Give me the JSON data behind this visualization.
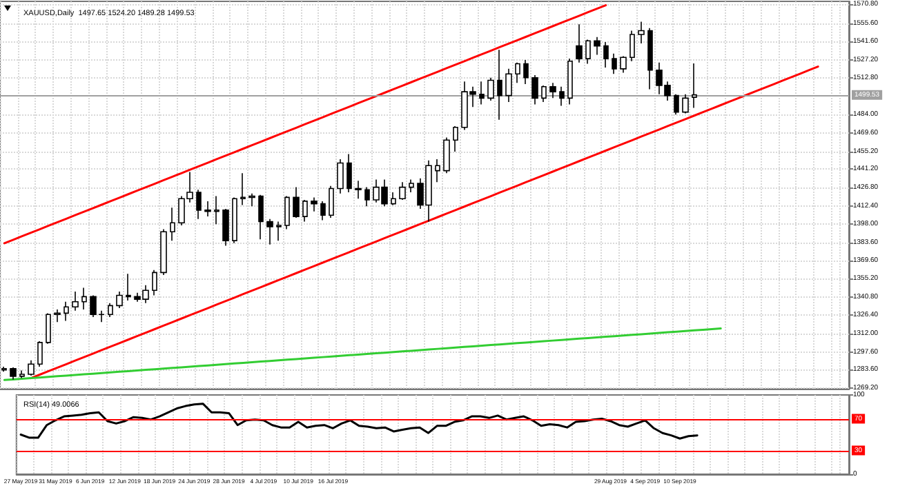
{
  "chart_data": [
    {
      "type": "candlestick",
      "title": "XAUUSD,Daily  1497.65 1524.20 1489.28 1499.53",
      "tick_labels": "y",
      "grid": true,
      "categories": [
        null,
        null,
        null,
        null,
        null,
        null,
        null,
        null,
        null,
        null,
        null,
        null,
        null,
        null,
        null,
        null,
        null,
        null,
        null,
        null,
        null,
        null,
        null,
        null,
        null,
        null,
        null,
        null,
        null,
        null,
        null,
        null,
        null,
        null,
        null,
        null,
        null,
        null,
        null,
        null,
        null,
        null,
        null,
        null,
        null,
        null,
        null,
        null,
        null,
        null,
        null,
        null,
        null,
        null,
        null,
        null,
        null,
        null,
        null,
        null,
        null,
        null,
        null,
        null,
        null,
        null,
        null,
        null,
        null,
        null,
        null,
        null,
        null,
        null,
        null,
        null,
        null,
        null,
        null,
        null,
        null,
        null,
        null,
        null,
        null,
        null,
        null,
        null,
        null,
        null,
        null,
        null,
        null,
        null,
        null,
        null
      ],
      "ylim": [
        1268.5,
        1573
      ],
      "yticks": [
        {
          "value": 1269.2,
          "label": "1269.20"
        },
        {
          "value": 1283.6,
          "label": "1283.60"
        },
        {
          "value": 1297.6,
          "label": "1297.60"
        },
        {
          "value": 1312.0,
          "label": "1312.00"
        },
        {
          "value": 1326.4,
          "label": "1326.40"
        },
        {
          "value": 1340.8,
          "label": "1340.80"
        },
        {
          "value": 1355.2,
          "label": "1355.20"
        },
        {
          "value": 1369.6,
          "label": "1369.60"
        },
        {
          "value": 1383.6,
          "label": "1383.60"
        },
        {
          "value": 1398.0,
          "label": "1398.00"
        },
        {
          "value": 1412.4,
          "label": "1412.40"
        },
        {
          "value": 1426.8,
          "label": "1426.80"
        },
        {
          "value": 1441.2,
          "label": "1441.20"
        },
        {
          "value": 1455.2,
          "label": "1455.20"
        },
        {
          "value": 1469.6,
          "label": "1469.60"
        },
        {
          "value": 1484.0,
          "label": "1484.00"
        },
        {
          "value": 1512.8,
          "label": "1512.80"
        },
        {
          "value": 1527.2,
          "label": "1527.20"
        },
        {
          "value": 1541.6,
          "label": "1541.60"
        },
        {
          "value": 1555.6,
          "label": "1555.60"
        },
        {
          "value": 1570.8,
          "label": "1570.80"
        }
      ],
      "ref_lines": [
        {
          "axis": "y",
          "value": 1499.53,
          "label": "1499.53",
          "color": "#a0a0a0"
        }
      ],
      "series": [
        {
          "type": "line",
          "color": "#ff0000",
          "values": [
            1383,
            1385.75,
            1388.5,
            1391.25,
            1394,
            1396.75,
            1399.5,
            1402.25,
            1405,
            1407.75,
            1410.5,
            1413.25,
            1416,
            1418.75,
            1421.5,
            1424.25,
            1427,
            1429.75,
            1432.5,
            1435.25,
            1438,
            1440.75,
            1443.5,
            1446.25,
            1449,
            1451.75,
            1454.5,
            1457.25,
            1460,
            1462.75,
            1465.5,
            1468.25,
            1471,
            1473.75,
            1476.5,
            1479.25,
            1482,
            1484.75,
            1487.5,
            1490.25,
            1493,
            1495.75,
            1498.5,
            1501.25,
            1504,
            1506.75,
            1509.5,
            1512.25,
            1515,
            1517.75,
            1520.5,
            1523.25,
            1526,
            1528.75,
            1531.5,
            1534.25,
            1537,
            1539.75,
            1542.5,
            1545.25,
            1548,
            1550.75,
            1553.5,
            1556.25,
            1559,
            1561.75,
            1564.5,
            1567.25,
            1570,
            null,
            null,
            null,
            null,
            null,
            null,
            null,
            null,
            null,
            null,
            null,
            null,
            null,
            null,
            null,
            null,
            null,
            null,
            null,
            null,
            null,
            null,
            null,
            null,
            null,
            null,
            null
          ]
        },
        {
          "type": "line",
          "color": "#ff0000",
          "values": [
            null,
            null,
            null,
            1277,
            1279.75,
            1282.5,
            1285.25,
            1288,
            1290.75,
            1293.5,
            1296.25,
            1299,
            1301.75,
            1304.5,
            1307.25,
            1310,
            1312.75,
            1315.5,
            1318.25,
            1321,
            1323.75,
            1326.5,
            1329.25,
            1332,
            1334.75,
            1337.5,
            1340.25,
            1343,
            1345.75,
            1348.5,
            1351.25,
            1354,
            1356.75,
            1359.5,
            1362.25,
            1365,
            1367.75,
            1370.5,
            1373.25,
            1376,
            1378.75,
            1381.5,
            1384.25,
            1387,
            1389.75,
            1392.5,
            1395.25,
            1398,
            1400.75,
            1403.5,
            1406.25,
            1409,
            1411.75,
            1414.5,
            1417.25,
            1420,
            1422.75,
            1425.5,
            1428.25,
            1431,
            1433.75,
            1436.5,
            1439.25,
            1442,
            1444.75,
            1447.5,
            1450.25,
            1453,
            1455.75,
            1458.5,
            1461.25,
            1464,
            1466.75,
            1469.5,
            1472.25,
            1475,
            1477.75,
            1480.5,
            1483.25,
            1486,
            1488.75,
            1491.5,
            1494.25,
            1497,
            1499.75,
            1502.5,
            1505.25,
            1508,
            1510.75,
            1513.5,
            1516.25,
            1519,
            1521.75,
            null,
            null,
            null
          ]
        },
        {
          "type": "line",
          "color": "#32cd32",
          "values": [
            1275.5,
            1276,
            1276.5,
            1277,
            1277.5,
            1278,
            1278.5,
            1279,
            1279.5,
            1280,
            1280.5,
            1281,
            1281.5,
            1282,
            1282.5,
            1283,
            1283.5,
            1284,
            1284.5,
            1285,
            1285.5,
            1286,
            1286.5,
            1287,
            1287.5,
            1288,
            1288.5,
            1289,
            1289.5,
            1290,
            1290.5,
            1291,
            1291.5,
            1292,
            1292.5,
            1293,
            1293.5,
            1294,
            1294.5,
            1295,
            1295.5,
            1296,
            1296.5,
            1297,
            1297.5,
            1298,
            1298.5,
            1299,
            1299.5,
            1300,
            1300.5,
            1301,
            1301.5,
            1302,
            1302.5,
            1303,
            1303.5,
            1304,
            1304.5,
            1305,
            1305.5,
            1306,
            1306.5,
            1307,
            1307.5,
            1308,
            1308.5,
            1309,
            1309.5,
            1310,
            1310.5,
            1311,
            1311.5,
            1312,
            1312.5,
            1313,
            1313.5,
            1314,
            1314.5,
            1315,
            1315.5,
            1316,
            null,
            null,
            null,
            null,
            null,
            null,
            null,
            null,
            null,
            null,
            null,
            null,
            null,
            null
          ]
        },
        {
          "color": "#000000",
          "ohlc": [
            [
              1283.5,
              1286,
              1282,
              1284.5
            ],
            [
              1284.5,
              1285.5,
              1276,
              1278.5
            ],
            [
              1278.5,
              1283,
              1277,
              1280
            ],
            [
              1280,
              1291,
              1279,
              1288
            ],
            [
              1288,
              1306,
              1286,
              1305
            ],
            [
              1305,
              1328,
              1304,
              1327
            ],
            [
              1327,
              1331,
              1321,
              1328
            ],
            [
              1328,
              1337,
              1322,
              1333
            ],
            [
              1333,
              1345,
              1330,
              1337
            ],
            [
              1337,
              1348,
              1331,
              1341
            ],
            [
              1341,
              1342,
              1325,
              1327
            ],
            [
              1327,
              1330,
              1321,
              1327
            ],
            [
              1327,
              1336,
              1325,
              1334
            ],
            [
              1334,
              1345,
              1332,
              1342
            ],
            [
              1342,
              1359,
              1338,
              1341
            ],
            [
              1341,
              1344,
              1337,
              1339
            ],
            [
              1339,
              1350,
              1336,
              1346
            ],
            [
              1346,
              1362,
              1342,
              1360
            ],
            [
              1360,
              1394,
              1358,
              1392
            ],
            [
              1392,
              1411,
              1385,
              1399
            ],
            [
              1399,
              1420,
              1397,
              1418
            ],
            [
              1418,
              1439,
              1415,
              1423
            ],
            [
              1423,
              1425,
              1402,
              1409
            ],
            [
              1409,
              1416,
              1404,
              1408
            ],
            [
              1408,
              1420,
              1398,
              1409
            ],
            [
              1409,
              1410,
              1381,
              1385
            ],
            [
              1385,
              1419,
              1383,
              1418
            ],
            [
              1418,
              1438,
              1413,
              1419
            ],
            [
              1419,
              1422,
              1412,
              1420
            ],
            [
              1420,
              1421,
              1386,
              1400
            ],
            [
              1400,
              1402,
              1382,
              1396
            ],
            [
              1396,
              1400,
              1385,
              1397
            ],
            [
              1397,
              1420,
              1394,
              1419
            ],
            [
              1419,
              1427,
              1403,
              1404
            ],
            [
              1404,
              1417,
              1400,
              1416
            ],
            [
              1416,
              1419,
              1408,
              1414
            ],
            [
              1414,
              1416,
              1401,
              1405
            ],
            [
              1405,
              1428,
              1403,
              1426
            ],
            [
              1426,
              1449,
              1422,
              1446
            ],
            [
              1446,
              1453,
              1423,
              1426
            ],
            [
              1426,
              1432,
              1418,
              1425
            ],
            [
              1425,
              1427,
              1412,
              1417
            ],
            [
              1417,
              1433,
              1415,
              1427
            ],
            [
              1427,
              1433,
              1412,
              1414
            ],
            [
              1414,
              1423,
              1413,
              1418
            ],
            [
              1418,
              1431,
              1417,
              1427
            ],
            [
              1427,
              1433,
              1423,
              1430
            ],
            [
              1430,
              1434,
              1410,
              1413
            ],
            [
              1413,
              1448,
              1400,
              1444
            ],
            [
              1440,
              1449,
              1431,
              1444
            ],
            [
              1440,
              1466,
              1438,
              1464
            ],
            [
              1464,
              1475,
              1455,
              1474
            ],
            [
              1474,
              1510,
              1472,
              1502
            ],
            [
              1502,
              1506,
              1490,
              1500
            ],
            [
              1500,
              1510,
              1492,
              1497
            ],
            [
              1497,
              1513,
              1495,
              1511
            ],
            [
              1511,
              1535,
              1480,
              1499
            ],
            [
              1499,
              1520,
              1494,
              1516
            ],
            [
              1516,
              1525,
              1509,
              1524
            ],
            [
              1524,
              1527,
              1508,
              1513
            ],
            [
              1513,
              1515,
              1492,
              1497
            ],
            [
              1497,
              1507,
              1494,
              1506
            ],
            [
              1506,
              1509,
              1497,
              1502
            ],
            [
              1502,
              1506,
              1491,
              1497
            ],
            [
              1497,
              1528,
              1492,
              1526
            ],
            [
              1538,
              1555,
              1525,
              1528
            ],
            [
              1528,
              1543,
              1524,
              1542
            ],
            [
              1542,
              1545,
              1531,
              1538
            ],
            [
              1538,
              1541,
              1521,
              1528
            ],
            [
              1528,
              1532,
              1516,
              1520
            ],
            [
              1520,
              1530,
              1517,
              1529
            ],
            [
              1529,
              1550,
              1526,
              1547
            ],
            [
              1547,
              1557,
              1540,
              1550
            ],
            [
              1550,
              1552,
              1504,
              1519
            ],
            [
              1519,
              1525,
              1500,
              1507
            ],
            [
              1507,
              1510,
              1495,
              1499
            ],
            [
              1499,
              1500,
              1484,
              1486
            ],
            [
              1486,
              1500,
              1485,
              1497
            ],
            [
              1497.65,
              1524.2,
              1489.28,
              1499.53
            ],
            null,
            null,
            null,
            null,
            null,
            null,
            null,
            null,
            null,
            null,
            null,
            null,
            null,
            null,
            null,
            null,
            null
          ]
        }
      ]
    },
    {
      "type": "line",
      "title": "RSI(14) 49.0066",
      "grid": "x",
      "categories": [
        "27 May 2019",
        null,
        null,
        null,
        "31 May 2019",
        null,
        null,
        null,
        "6 Jun 2019",
        null,
        null,
        null,
        "12 Jun 2019",
        null,
        null,
        null,
        "18 Jun 2019",
        null,
        null,
        null,
        "24 Jun 2019",
        null,
        null,
        null,
        "28 Jun 2019",
        null,
        null,
        null,
        "4 Jul 2019",
        null,
        null,
        null,
        "10 Jul 2019",
        null,
        null,
        null,
        "16 Jul 2019",
        null,
        null,
        null,
        null,
        null,
        null,
        null,
        null,
        null,
        null,
        null,
        null,
        null,
        null,
        null,
        null,
        null,
        null,
        null,
        null,
        null,
        null,
        null,
        null,
        null,
        null,
        null,
        null,
        null,
        null,
        null,
        "29 Aug 2019",
        null,
        null,
        null,
        "4 Sep 2019",
        null,
        null,
        null,
        "10 Sep 2019",
        null,
        null,
        null,
        null,
        null,
        null,
        null,
        null,
        null,
        null,
        null,
        null,
        null,
        null,
        null,
        null,
        null,
        null,
        null
      ],
      "ylim": [
        0,
        100
      ],
      "yticks": [
        0,
        100
      ],
      "ref_lines": [
        {
          "axis": "y",
          "value": 70,
          "label": "70",
          "color": "#ff0000"
        },
        {
          "axis": "y",
          "value": 30,
          "label": "30",
          "color": "#ff0000"
        }
      ],
      "series": [
        {
          "color": "#000000",
          "values": [
            50,
            46,
            46,
            62,
            68,
            73,
            74,
            75,
            77,
            78,
            67,
            64,
            67,
            72,
            71,
            69,
            73,
            78,
            83,
            86,
            88,
            89,
            78,
            78,
            77,
            62,
            68,
            69,
            68,
            62,
            59,
            59,
            66,
            59,
            61,
            62,
            58,
            64,
            68,
            61,
            60,
            58,
            59,
            54,
            56,
            58,
            59,
            52,
            61,
            61,
            66,
            68,
            73,
            73,
            71,
            74,
            69,
            71,
            73,
            68,
            61,
            63,
            62,
            59,
            66,
            67,
            69,
            70,
            67,
            62,
            60,
            64,
            68,
            58,
            52,
            49,
            45,
            48,
            49.0066,
            null,
            null,
            null,
            null,
            null,
            null,
            null,
            null,
            null,
            null,
            null,
            null,
            null,
            null,
            null,
            null,
            null
          ]
        }
      ]
    }
  ]
}
